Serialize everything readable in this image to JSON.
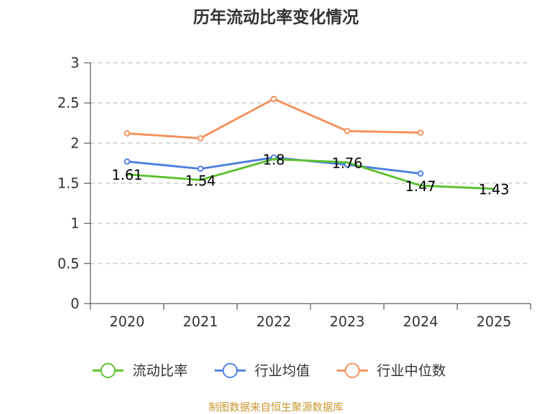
{
  "chart_data": {
    "type": "line",
    "title": "历年流动比率变化情况",
    "categories": [
      "2020",
      "2021",
      "2022",
      "2023",
      "2024",
      "2025"
    ],
    "y_ticks": [
      "0",
      "0.5",
      "1",
      "1.5",
      "2",
      "2.5",
      "3"
    ],
    "ylim": [
      0,
      3
    ],
    "grid": true,
    "legend_position": "bottom",
    "series": [
      {
        "name": "流动比率",
        "color": "#5cc02e",
        "values": [
          1.61,
          1.54,
          1.8,
          1.76,
          1.47,
          1.43
        ],
        "labels": [
          "1.61",
          "1.54",
          "1.8",
          "1.76",
          "1.47",
          "1.43"
        ],
        "show_labels": true,
        "markers": false
      },
      {
        "name": "行业均值",
        "color": "#4d7fe0",
        "values": [
          1.77,
          1.68,
          1.82,
          1.73,
          1.62,
          null
        ],
        "show_labels": false,
        "markers": true
      },
      {
        "name": "行业中位数",
        "color": "#f5905a",
        "values": [
          2.12,
          2.06,
          2.55,
          2.15,
          2.13,
          null
        ],
        "show_labels": false,
        "markers": true
      }
    ]
  },
  "source": {
    "text": "制图数据来自恒生聚源数据库",
    "color": "#c8962e"
  }
}
